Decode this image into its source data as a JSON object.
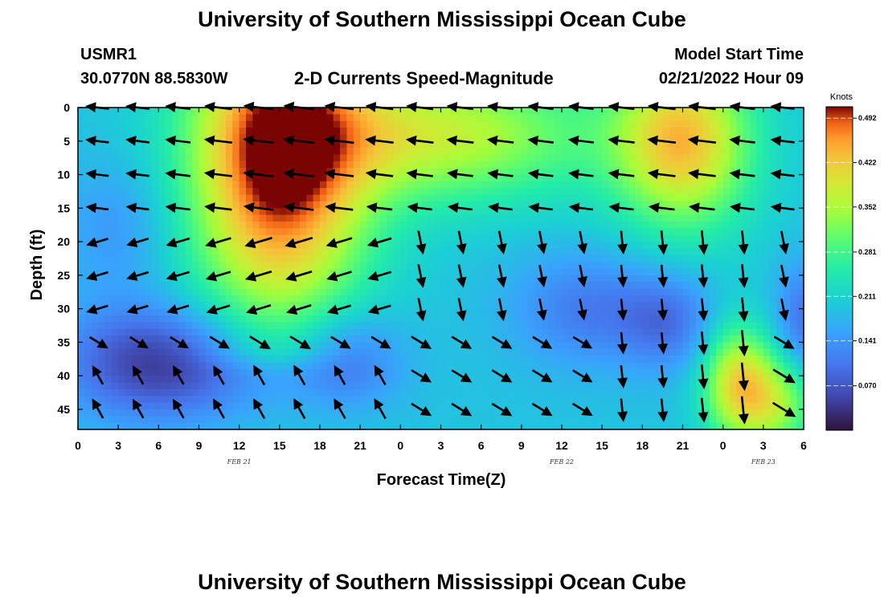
{
  "header": {
    "title": "University of Southern Mississippi Ocean Cube",
    "station": "USMR1",
    "coords": "30.0770N  88.5830W",
    "subtitle": "2-D Currents Speed-Magnitude",
    "model_label": "Model Start Time",
    "model_time": "02/21/2022 Hour 09"
  },
  "footer": {
    "title": "University of Southern Mississippi Ocean Cube"
  },
  "chart_data": {
    "type": "heatmap",
    "title": "2-D Currents Speed-Magnitude",
    "xlabel": "Forecast Time(Z)",
    "ylabel": "Depth (ft)",
    "x_ticks": [
      "0",
      "3",
      "6",
      "9",
      "12",
      "15",
      "18",
      "21",
      "0",
      "3",
      "6",
      "9",
      "12",
      "15",
      "18",
      "21",
      "0",
      "3",
      "6"
    ],
    "x_range_hours": [
      0,
      54
    ],
    "date_labels": [
      {
        "text": "FEB 21",
        "hour": 12
      },
      {
        "text": "FEB 22",
        "hour": 36
      },
      {
        "text": "FEB 23",
        "hour": 51
      }
    ],
    "y_ticks": [
      0,
      5,
      10,
      15,
      20,
      25,
      30,
      35,
      40,
      45
    ],
    "ylim": [
      48,
      0
    ],
    "colorbar": {
      "title": "Knots",
      "ticks": [
        "0.492",
        "0.422",
        "0.352",
        "0.281",
        "0.211",
        "0.141",
        "0.070"
      ],
      "range": [
        0,
        0.51
      ]
    },
    "vector_hours": [
      1.5,
      4.5,
      7.5,
      10.5,
      13.5,
      16.5,
      19.5,
      22.5,
      25.5,
      28.5,
      31.5,
      34.5,
      37.5,
      40.5,
      43.5,
      46.5,
      49.5,
      52.5
    ],
    "vector_depths": [
      0,
      5,
      10,
      15,
      20,
      25,
      30,
      35,
      40,
      45
    ]
  }
}
